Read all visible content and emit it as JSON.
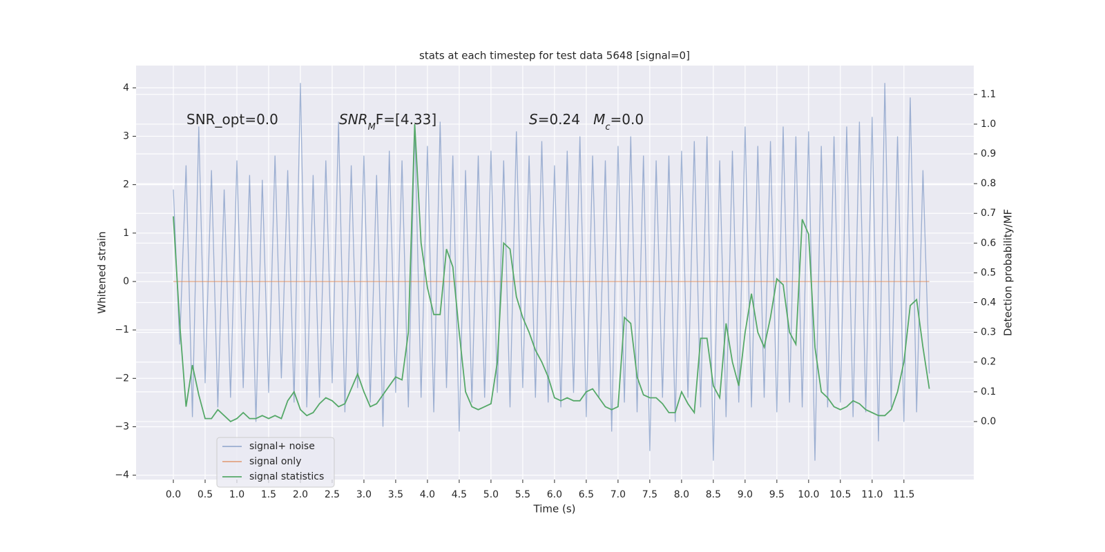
{
  "chart_data": {
    "type": "line",
    "title": "stats at each timestep for test data 5648 [signal=0]",
    "xlabel": "Time (s)",
    "ylabel": "Whitened strain",
    "y2label": "Detection probability/MF",
    "annotations": [
      {
        "parts": [
          "SNR_opt=0.0"
        ]
      },
      {
        "parts": [
          "SNR",
          "M",
          "F=[4.33]"
        ]
      },
      {
        "parts": [
          "S",
          "=0.24   ",
          "M",
          "c",
          "=0.0"
        ]
      }
    ],
    "grid": true,
    "legend": "lower left",
    "xlim": [
      -0.587,
      12.6
    ],
    "ylim": [
      -4.09,
      4.46
    ],
    "y2lim": [
      -0.195,
      1.197
    ],
    "xticks": [
      {
        "value": 0,
        "label": "0.0"
      },
      {
        "value": 0.5,
        "label": "0.5"
      },
      {
        "value": 1,
        "label": "1.0"
      },
      {
        "value": 1.5,
        "label": "1.5"
      },
      {
        "value": 2,
        "label": "2.0"
      },
      {
        "value": 2.5,
        "label": "2.5"
      },
      {
        "value": 3,
        "label": "3.0"
      },
      {
        "value": 3.5,
        "label": "3.5"
      },
      {
        "value": 4,
        "label": "4.0"
      },
      {
        "value": 4.5,
        "label": "4.5"
      },
      {
        "value": 5,
        "label": "5.0"
      },
      {
        "value": 5.5,
        "label": "5.5"
      },
      {
        "value": 6,
        "label": "6.0"
      },
      {
        "value": 6.5,
        "label": "6.5"
      },
      {
        "value": 7,
        "label": "7.0"
      },
      {
        "value": 7.5,
        "label": "7.5"
      },
      {
        "value": 8,
        "label": "8.0"
      },
      {
        "value": 8.5,
        "label": "8.5"
      },
      {
        "value": 9,
        "label": "9.0"
      },
      {
        "value": 9.5,
        "label": "9.5"
      },
      {
        "value": 10,
        "label": "10.0"
      },
      {
        "value": 10.5,
        "label": "10.5"
      },
      {
        "value": 11,
        "label": "11.0"
      },
      {
        "value": 11.5,
        "label": "11.5"
      }
    ],
    "yticks": [
      {
        "value": -4,
        "label": "−4"
      },
      {
        "value": -3,
        "label": "−3"
      },
      {
        "value": -2,
        "label": "−2"
      },
      {
        "value": -1,
        "label": "−1"
      },
      0,
      1,
      2,
      3,
      4
    ],
    "y2ticks": [
      {
        "value": 0,
        "label": "0.0"
      },
      {
        "value": 0.1,
        "label": "0.1"
      },
      {
        "value": 0.2,
        "label": "0.2"
      },
      {
        "value": 0.3,
        "label": "0.3"
      },
      {
        "value": 0.4,
        "label": "0.4"
      },
      {
        "value": 0.5,
        "label": "0.5"
      },
      {
        "value": 0.6,
        "label": "0.6"
      },
      {
        "value": 0.7,
        "label": "0.7"
      },
      {
        "value": 0.8,
        "label": "0.8"
      },
      {
        "value": 0.9,
        "label": "0.9"
      },
      {
        "value": 1,
        "label": "1.0"
      },
      {
        "value": 1.1,
        "label": "1.1"
      }
    ],
    "x": [
      0,
      0.1,
      0.2,
      0.3,
      0.4,
      0.5,
      0.6,
      0.7,
      0.8,
      0.9,
      1,
      1.1,
      1.2,
      1.3,
      1.4,
      1.5,
      1.6,
      1.7,
      1.8,
      1.9,
      2,
      2.1,
      2.2,
      2.3,
      2.4,
      2.5,
      2.6,
      2.7,
      2.8,
      2.9,
      3,
      3.1,
      3.2,
      3.3,
      3.4,
      3.5,
      3.6,
      3.7,
      3.8,
      3.9,
      4,
      4.1,
      4.2,
      4.3,
      4.4,
      4.5,
      4.6,
      4.7,
      4.8,
      4.9,
      5,
      5.1,
      5.2,
      5.3,
      5.4,
      5.5,
      5.6,
      5.7,
      5.8,
      5.9,
      6,
      6.1,
      6.2,
      6.3,
      6.4,
      6.5,
      6.6,
      6.7,
      6.8,
      6.9,
      7,
      7.1,
      7.2,
      7.3,
      7.4,
      7.5,
      7.6,
      7.7,
      7.8,
      7.9,
      8,
      8.1,
      8.2,
      8.3,
      8.4,
      8.5,
      8.6,
      8.7,
      8.8,
      8.9,
      9,
      9.1,
      9.2,
      9.3,
      9.4,
      9.5,
      9.6,
      9.7,
      9.8,
      9.9,
      10,
      10.1,
      10.2,
      10.3,
      10.4,
      10.5,
      10.6,
      10.7,
      10.8,
      10.9,
      11,
      11.1,
      11.2,
      11.3,
      11.4,
      11.5,
      11.6,
      11.7,
      11.8,
      11.9
    ],
    "series": [
      {
        "name": "signal+ noise",
        "color": "#4c72b0",
        "opacity": 0.5,
        "values": [
          1.9,
          -1.3,
          2.4,
          -2.8,
          3.2,
          -2.1,
          2.3,
          -2.6,
          1.9,
          -2.4,
          2.5,
          -2.2,
          2.2,
          -2.9,
          2.1,
          -2.3,
          2.6,
          -2.0,
          2.3,
          -2.5,
          4.1,
          -2.6,
          2.2,
          -2.4,
          2.5,
          -2.1,
          3.3,
          -2.7,
          2.4,
          -2.2,
          2.6,
          -2.5,
          2.2,
          -3.0,
          2.7,
          -2.3,
          2.5,
          -2.6,
          3.2,
          -2.4,
          2.8,
          -2.7,
          3.3,
          -2.2,
          2.6,
          -3.1,
          2.3,
          -2.5,
          2.6,
          -2.4,
          2.7,
          -2.3,
          2.5,
          -2.6,
          3.1,
          -2.2,
          2.6,
          -2.4,
          2.9,
          -2.5,
          2.4,
          -2.6,
          2.7,
          -2.3,
          3.0,
          -2.8,
          2.6,
          -2.4,
          2.5,
          -3.1,
          2.8,
          -2.5,
          3.0,
          -2.7,
          2.6,
          -3.5,
          2.5,
          -2.4,
          2.6,
          -2.9,
          2.7,
          -2.4,
          2.9,
          -2.6,
          3.0,
          -3.7,
          2.5,
          -2.8,
          2.7,
          -2.5,
          3.2,
          -2.6,
          2.8,
          -2.4,
          2.9,
          -2.7,
          3.2,
          -2.5,
          3.0,
          -2.6,
          3.1,
          -3.7,
          2.8,
          -2.6,
          3.0,
          -2.5,
          3.2,
          -2.8,
          3.3,
          -2.7,
          3.4,
          -3.3,
          4.1,
          -2.6,
          3.0,
          -2.9,
          3.8,
          -2.7,
          2.3,
          -1.9
        ]
      },
      {
        "name": "signal only",
        "color": "#dd8452",
        "opacity": 0.7,
        "values": [
          0,
          0,
          0,
          0,
          0,
          0,
          0,
          0,
          0,
          0,
          0,
          0,
          0,
          0,
          0,
          0,
          0,
          0,
          0,
          0,
          0,
          0,
          0,
          0,
          0,
          0,
          0,
          0,
          0,
          0,
          0,
          0,
          0,
          0,
          0,
          0,
          0,
          0,
          0,
          0,
          0,
          0,
          0,
          0,
          0,
          0,
          0,
          0,
          0,
          0,
          0,
          0,
          0,
          0,
          0,
          0,
          0,
          0,
          0,
          0,
          0,
          0,
          0,
          0,
          0,
          0,
          0,
          0,
          0,
          0,
          0,
          0,
          0,
          0,
          0,
          0,
          0,
          0,
          0,
          0,
          0,
          0,
          0,
          0,
          0,
          0,
          0,
          0,
          0,
          0,
          0,
          0,
          0,
          0,
          0,
          0,
          0,
          0,
          0,
          0,
          0,
          0,
          0,
          0,
          0,
          0,
          0,
          0,
          0,
          0,
          0,
          0,
          0,
          0,
          0,
          0,
          0,
          0,
          0,
          0
        ]
      },
      {
        "name": "signal statistics",
        "color": "#55a868",
        "opacity": 1,
        "axis": "y2",
        "values": [
          0.69,
          0.33,
          0.05,
          0.19,
          0.09,
          0.01,
          0.01,
          0.04,
          0.02,
          0.0,
          0.01,
          0.03,
          0.01,
          0.01,
          0.02,
          0.01,
          0.02,
          0.01,
          0.07,
          0.1,
          0.04,
          0.02,
          0.03,
          0.06,
          0.08,
          0.07,
          0.05,
          0.06,
          0.11,
          0.16,
          0.1,
          0.05,
          0.06,
          0.09,
          0.12,
          0.15,
          0.14,
          0.3,
          1.0,
          0.6,
          0.45,
          0.36,
          0.36,
          0.58,
          0.52,
          0.3,
          0.1,
          0.05,
          0.04,
          0.05,
          0.06,
          0.2,
          0.6,
          0.58,
          0.42,
          0.35,
          0.3,
          0.24,
          0.2,
          0.15,
          0.08,
          0.07,
          0.08,
          0.07,
          0.07,
          0.1,
          0.11,
          0.08,
          0.05,
          0.04,
          0.05,
          0.35,
          0.33,
          0.15,
          0.09,
          0.08,
          0.08,
          0.06,
          0.03,
          0.03,
          0.1,
          0.06,
          0.03,
          0.28,
          0.28,
          0.12,
          0.08,
          0.33,
          0.2,
          0.12,
          0.3,
          0.43,
          0.3,
          0.25,
          0.35,
          0.48,
          0.46,
          0.3,
          0.26,
          0.68,
          0.63,
          0.25,
          0.1,
          0.08,
          0.05,
          0.04,
          0.05,
          0.07,
          0.06,
          0.04,
          0.03,
          0.02,
          0.02,
          0.04,
          0.1,
          0.2,
          0.39,
          0.41,
          0.25,
          0.11
        ]
      }
    ]
  }
}
